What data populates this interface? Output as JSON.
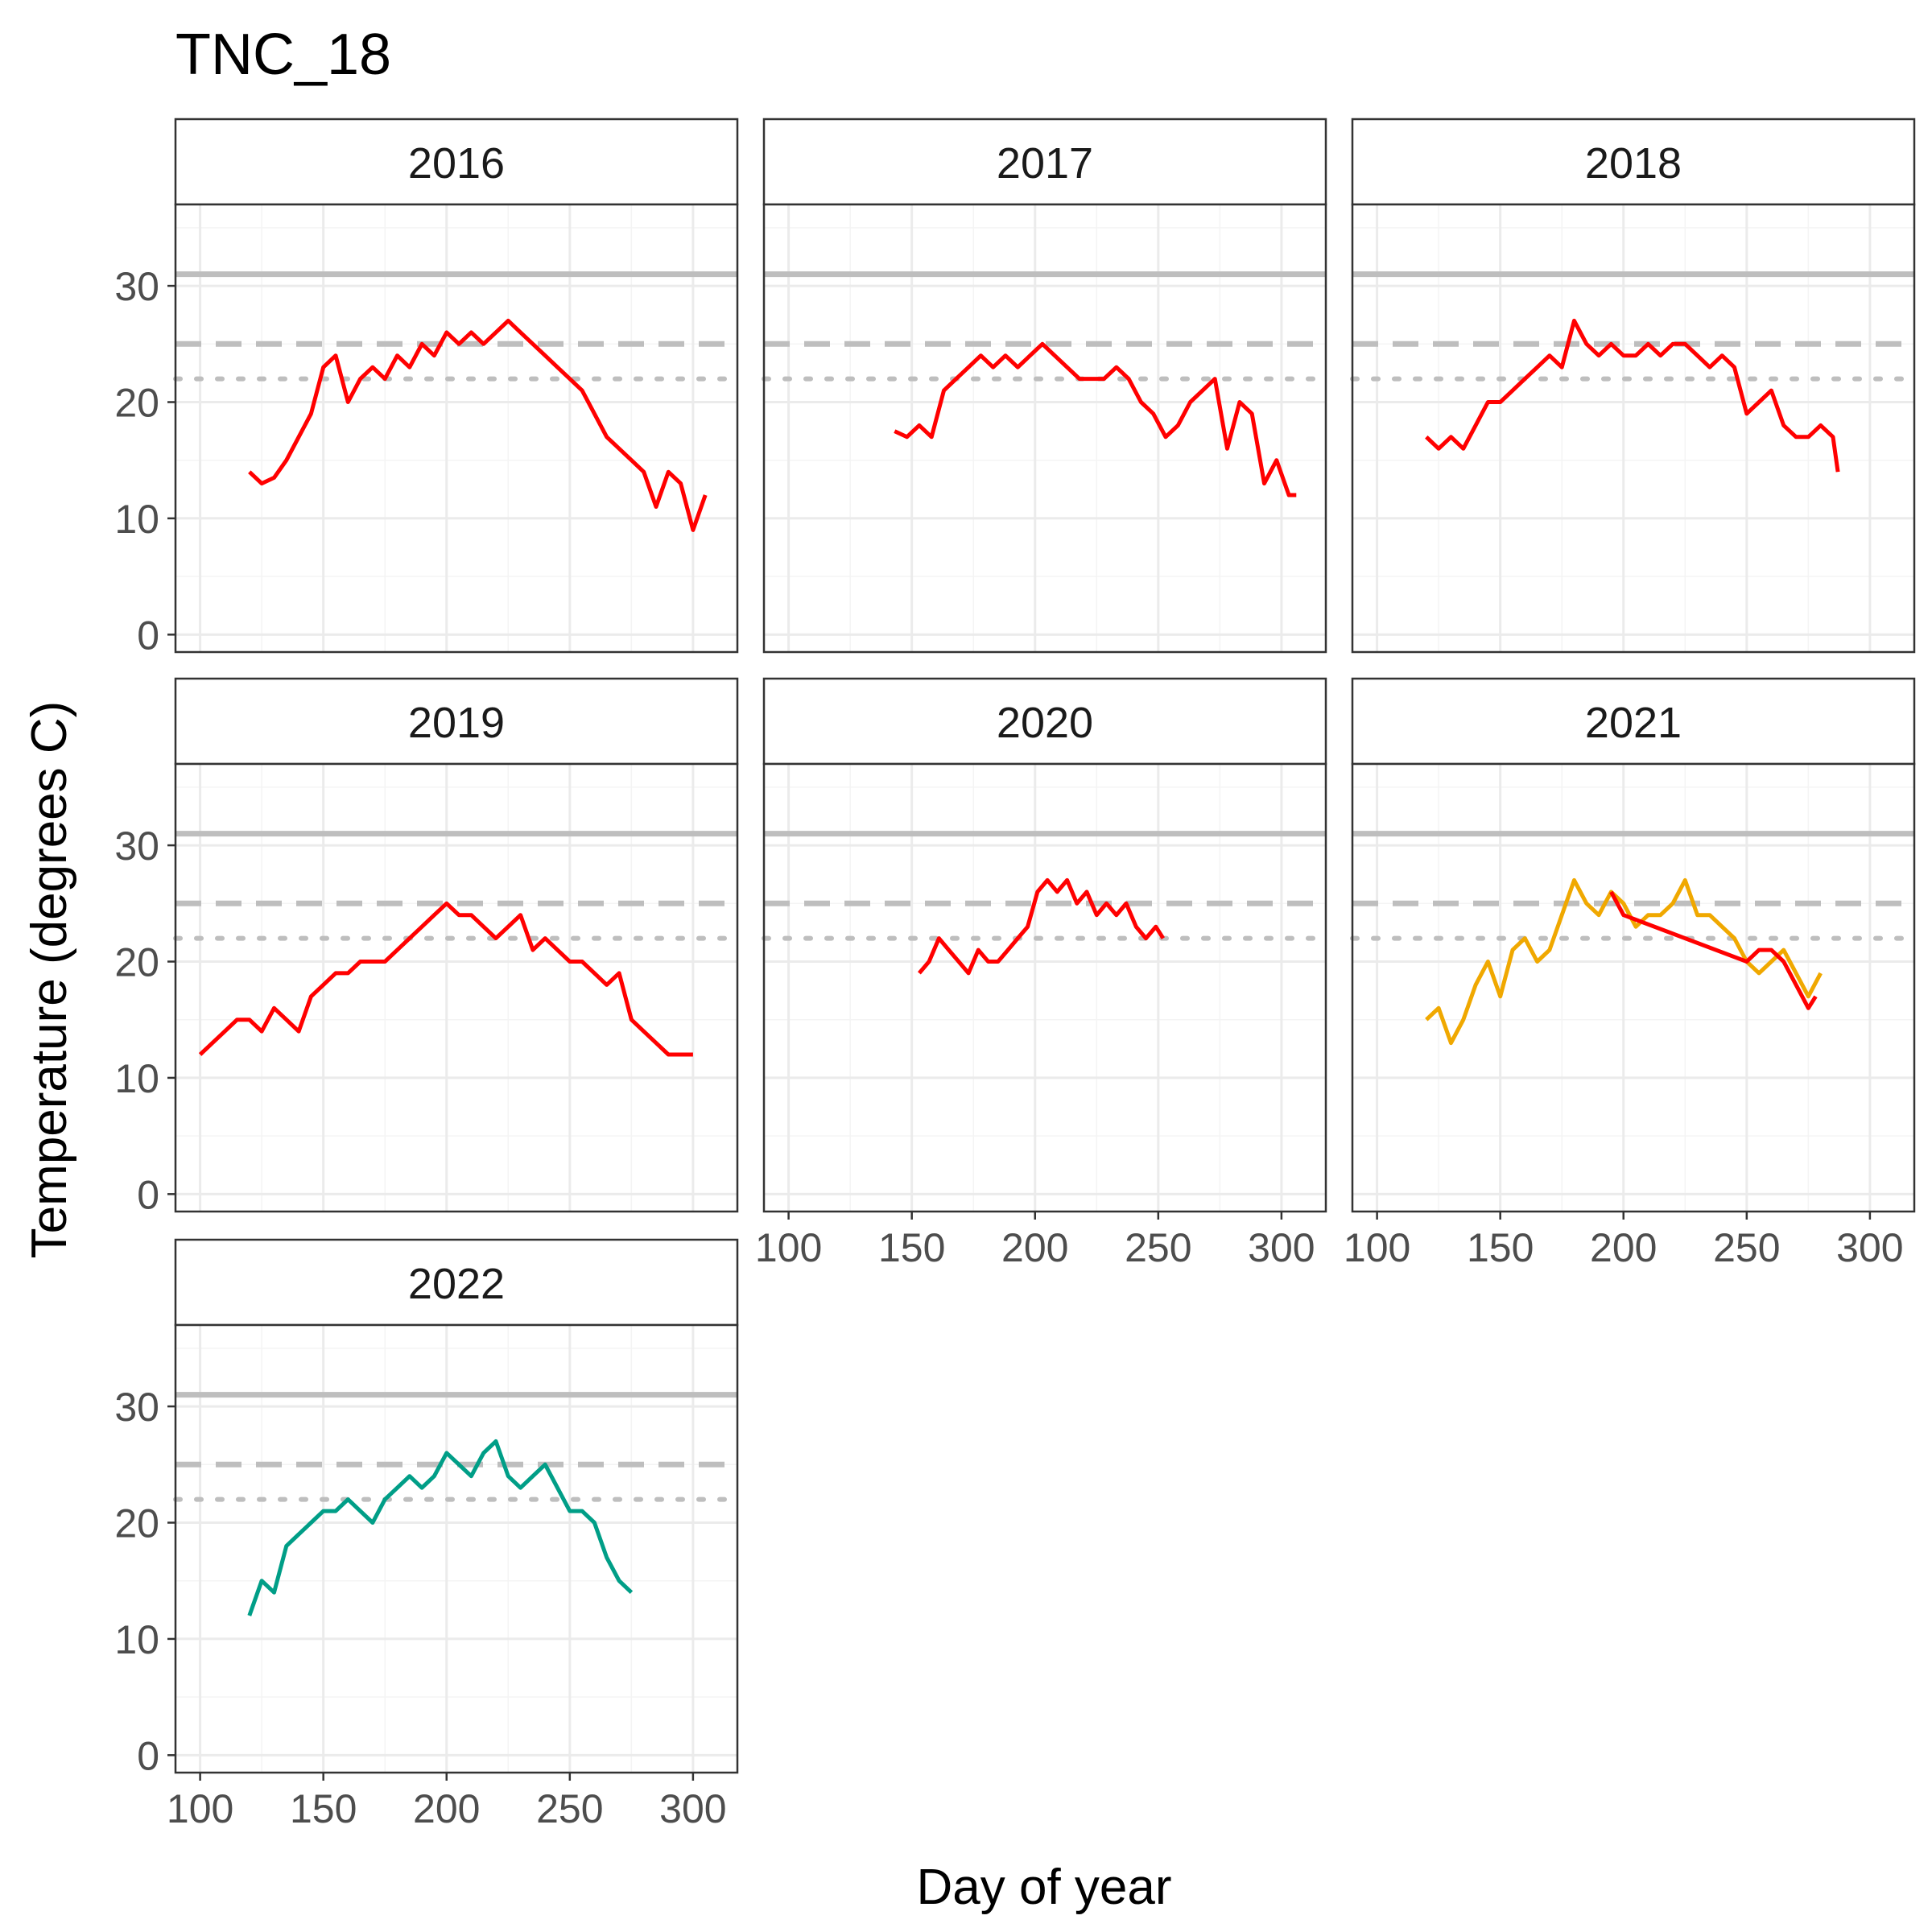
{
  "figure": {
    "title": "TNC_18",
    "xlabel": "Day of year",
    "ylabel": "Temperature (degrees C)"
  },
  "colors": {
    "line_red": "#ff0000",
    "line_orange": "#f0a800",
    "line_teal": "#009e87",
    "threshold": "#bebebe",
    "grid_major": "#ebebeb",
    "grid_minor": "#f4f4f4",
    "panel_border": "#333333",
    "tick_text": "#4d4d4d"
  },
  "chart_data": {
    "type": "line",
    "facet_by": "year",
    "layout": "3 columns, 3 rows; x axis shown on bottom panel of each column",
    "x_ticks": [
      100,
      150,
      200,
      250,
      300
    ],
    "y_ticks": [
      0,
      10,
      20,
      30
    ],
    "xlim": [
      90,
      318
    ],
    "ylim": [
      -1.5,
      37
    ],
    "reference_lines": [
      {
        "y": 31,
        "style": "solid"
      },
      {
        "y": 25,
        "style": "dashed"
      },
      {
        "y": 22,
        "style": "dotted"
      }
    ],
    "panels": [
      {
        "label": "2016",
        "series": [
          {
            "color_key": "line_red",
            "x": [
              120,
              125,
              130,
              135,
              140,
              145,
              150,
              155,
              160,
              165,
              170,
              175,
              180,
              185,
              190,
              195,
              200,
              205,
              210,
              215,
              220,
              225,
              230,
              235,
              240,
              245,
              250,
              255,
              260,
              265,
              270,
              275,
              280,
              285,
              290,
              295,
              300,
              305
            ],
            "y": [
              14,
              13,
              13.5,
              15,
              17,
              19,
              23,
              24,
              20,
              22,
              23,
              22,
              24,
              23,
              25,
              24,
              26,
              25,
              26,
              25,
              26,
              27,
              26,
              25,
              24,
              23,
              22,
              21,
              19,
              17,
              16,
              15,
              14,
              11,
              14,
              13,
              9,
              12
            ]
          }
        ]
      },
      {
        "label": "2017",
        "series": [
          {
            "color_key": "line_red",
            "x": [
              143,
              148,
              153,
              158,
              163,
              168,
              173,
              178,
              183,
              188,
              193,
              198,
              203,
              208,
              213,
              218,
              223,
              228,
              233,
              238,
              243,
              248,
              253,
              258,
              263,
              268,
              273,
              278,
              283,
              288,
              293,
              298,
              303,
              306
            ],
            "y": [
              17.5,
              17,
              18,
              17,
              21,
              22,
              23,
              24,
              23,
              24,
              23,
              24,
              25,
              24,
              23,
              22,
              22,
              22,
              23,
              22,
              20,
              19,
              17,
              18,
              20,
              21,
              22,
              16,
              20,
              19,
              13,
              15,
              12,
              12
            ]
          }
        ]
      },
      {
        "label": "2018",
        "series": [
          {
            "color_key": "line_red",
            "x": [
              120,
              125,
              130,
              135,
              140,
              145,
              150,
              155,
              160,
              165,
              170,
              175,
              180,
              185,
              190,
              195,
              200,
              205,
              210,
              215,
              220,
              225,
              230,
              235,
              240,
              245,
              250,
              255,
              260,
              265,
              270,
              275,
              280,
              285,
              287
            ],
            "y": [
              17,
              16,
              17,
              16,
              18,
              20,
              20,
              21,
              22,
              23,
              24,
              23,
              27,
              25,
              24,
              25,
              24,
              24,
              25,
              24,
              25,
              25,
              24,
              23,
              24,
              23,
              19,
              20,
              21,
              18,
              17,
              17,
              18,
              17,
              14
            ]
          }
        ]
      },
      {
        "label": "2019",
        "series": [
          {
            "color_key": "line_red",
            "x": [
              100,
              105,
              110,
              115,
              120,
              125,
              130,
              135,
              140,
              145,
              150,
              155,
              160,
              165,
              170,
              175,
              180,
              185,
              190,
              195,
              200,
              205,
              210,
              215,
              220,
              225,
              230,
              235,
              240,
              245,
              250,
              255,
              260,
              265,
              270,
              275,
              280,
              285,
              290,
              295,
              300
            ],
            "y": [
              12,
              13,
              14,
              15,
              15,
              14,
              16,
              15,
              14,
              17,
              18,
              19,
              19,
              20,
              20,
              20,
              21,
              22,
              23,
              24,
              25,
              24,
              24,
              23,
              22,
              23,
              24,
              21,
              22,
              21,
              20,
              20,
              19,
              18,
              19,
              15,
              14,
              13,
              12,
              12,
              12
            ]
          }
        ]
      },
      {
        "label": "2020",
        "series": [
          {
            "color_key": "line_red",
            "x": [
              153,
              157,
              161,
              165,
              169,
              173,
              177,
              181,
              185,
              189,
              193,
              197,
              201,
              205,
              209,
              213,
              217,
              221,
              225,
              229,
              233,
              237,
              241,
              245,
              249,
              252
            ],
            "y": [
              19,
              20,
              22,
              21,
              20,
              19,
              21,
              20,
              20,
              21,
              22,
              23,
              26,
              27,
              26,
              27,
              25,
              26,
              24,
              25,
              24,
              25,
              23,
              22,
              23,
              22
            ]
          }
        ]
      },
      {
        "label": "2021",
        "series": [
          {
            "color_key": "line_orange",
            "x": [
              120,
              125,
              130,
              135,
              140,
              145,
              150,
              155,
              160,
              165,
              170,
              175,
              180,
              185,
              190,
              195,
              200,
              205,
              210,
              215,
              220,
              225,
              230,
              235,
              240,
              245,
              250,
              255,
              260,
              265,
              270,
              275,
              280
            ],
            "y": [
              15,
              16,
              13,
              15,
              18,
              20,
              17,
              21,
              22,
              20,
              21,
              24,
              27,
              25,
              24,
              26,
              25,
              23,
              24,
              24,
              25,
              27,
              24,
              24,
              23,
              22,
              20,
              19,
              20,
              21,
              19,
              17,
              19
            ]
          },
          {
            "color_key": "line_red",
            "x": [
              195,
              200,
              250,
              255,
              260,
              265,
              270,
              275,
              278
            ],
            "y": [
              26,
              24,
              20,
              21,
              21,
              20,
              18,
              16,
              17
            ]
          }
        ]
      },
      {
        "label": "2022",
        "series": [
          {
            "color_key": "line_teal",
            "x": [
              120,
              125,
              130,
              135,
              140,
              145,
              150,
              155,
              160,
              165,
              170,
              175,
              180,
              185,
              190,
              195,
              200,
              205,
              210,
              215,
              220,
              225,
              230,
              235,
              240,
              245,
              250,
              255,
              260,
              265,
              270,
              275
            ],
            "y": [
              12,
              15,
              14,
              18,
              19,
              20,
              21,
              21,
              22,
              21,
              20,
              22,
              23,
              24,
              23,
              24,
              26,
              25,
              24,
              26,
              27,
              24,
              23,
              24,
              25,
              23,
              21,
              21,
              20,
              17,
              15,
              14
            ]
          }
        ]
      }
    ]
  }
}
